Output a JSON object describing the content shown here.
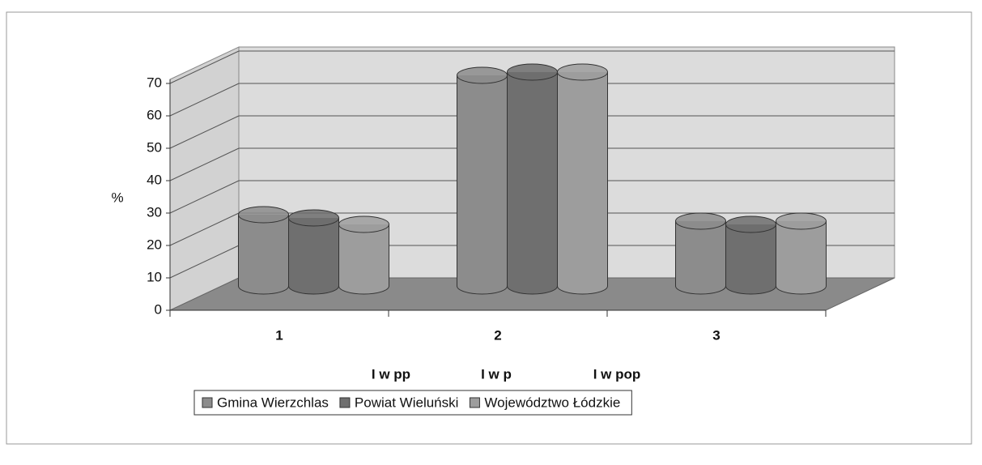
{
  "chart_data": {
    "type": "bar",
    "y_label": "%",
    "categories": [
      "1",
      "2",
      "3"
    ],
    "series": [
      {
        "name": "Gmina Wierzchlas",
        "color": "#8c8c8c",
        "values": [
          22,
          65,
          20
        ]
      },
      {
        "name": "Powiat Wieluński",
        "color": "#6f6f6f",
        "values": [
          21,
          66,
          19
        ]
      },
      {
        "name": "Województwo Łódzkie",
        "color": "#9d9d9d",
        "values": [
          19,
          66,
          20
        ]
      }
    ],
    "annotations": [
      "I w pp",
      "I w p",
      "I w pop"
    ],
    "ylim": [
      0,
      70
    ],
    "yticks": [
      0,
      10,
      20,
      30,
      40,
      50,
      60,
      70
    ],
    "grid": true
  }
}
